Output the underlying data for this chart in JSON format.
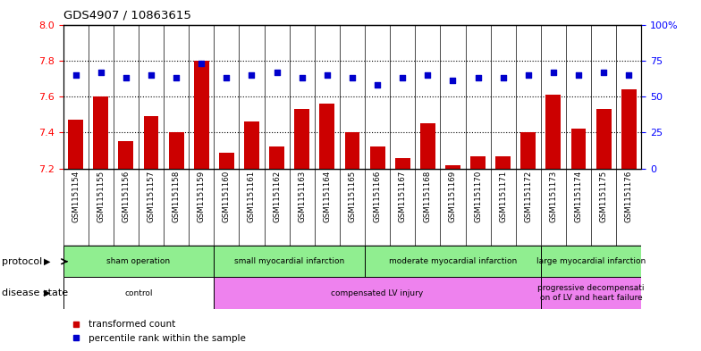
{
  "title": "GDS4907 / 10863615",
  "samples": [
    "GSM1151154",
    "GSM1151155",
    "GSM1151156",
    "GSM1151157",
    "GSM1151158",
    "GSM1151159",
    "GSM1151160",
    "GSM1151161",
    "GSM1151162",
    "GSM1151163",
    "GSM1151164",
    "GSM1151165",
    "GSM1151166",
    "GSM1151167",
    "GSM1151168",
    "GSM1151169",
    "GSM1151170",
    "GSM1151171",
    "GSM1151172",
    "GSM1151173",
    "GSM1151174",
    "GSM1151175",
    "GSM1151176"
  ],
  "bar_values": [
    7.47,
    7.6,
    7.35,
    7.49,
    7.4,
    7.8,
    7.29,
    7.46,
    7.32,
    7.53,
    7.56,
    7.4,
    7.32,
    7.26,
    7.45,
    7.22,
    7.27,
    7.27,
    7.4,
    7.61,
    7.42,
    7.53,
    7.64
  ],
  "dot_pct": [
    65,
    67,
    63,
    65,
    63,
    73,
    63,
    65,
    67,
    63,
    65,
    63,
    58,
    63,
    65,
    61,
    63,
    63,
    65,
    67,
    65,
    67,
    65
  ],
  "ylim_left": [
    7.2,
    8.0
  ],
  "ylim_right": [
    0,
    100
  ],
  "yticks_left": [
    7.2,
    7.4,
    7.6,
    7.8,
    8.0
  ],
  "yticks_right": [
    0,
    25,
    50,
    75,
    100
  ],
  "ytick_labels_right": [
    "0",
    "25",
    "50",
    "75",
    "100%"
  ],
  "bar_color": "#cc0000",
  "dot_color": "#0000cc",
  "bar_width": 0.6,
  "bg_color": "#ffffff",
  "xtick_bg": "#d0d0d0",
  "protocol_groups": [
    {
      "label": "sham operation",
      "start": 0,
      "end": 5,
      "color": "#90ee90"
    },
    {
      "label": "small myocardial infarction",
      "start": 6,
      "end": 11,
      "color": "#90ee90"
    },
    {
      "label": "moderate myocardial infarction",
      "start": 12,
      "end": 18,
      "color": "#90ee90"
    },
    {
      "label": "large myocardial infarction",
      "start": 19,
      "end": 22,
      "color": "#90ee90"
    }
  ],
  "disease_groups": [
    {
      "label": "control",
      "start": 0,
      "end": 5,
      "color": "#ffffff"
    },
    {
      "label": "compensated LV injury",
      "start": 6,
      "end": 18,
      "color": "#ee82ee"
    },
    {
      "label": "progressive decompensati\non of LV and heart failure",
      "start": 19,
      "end": 22,
      "color": "#ee82ee"
    }
  ],
  "legend_items": [
    {
      "label": "transformed count",
      "color": "#cc0000"
    },
    {
      "label": "percentile rank within the sample",
      "color": "#0000cc"
    }
  ]
}
